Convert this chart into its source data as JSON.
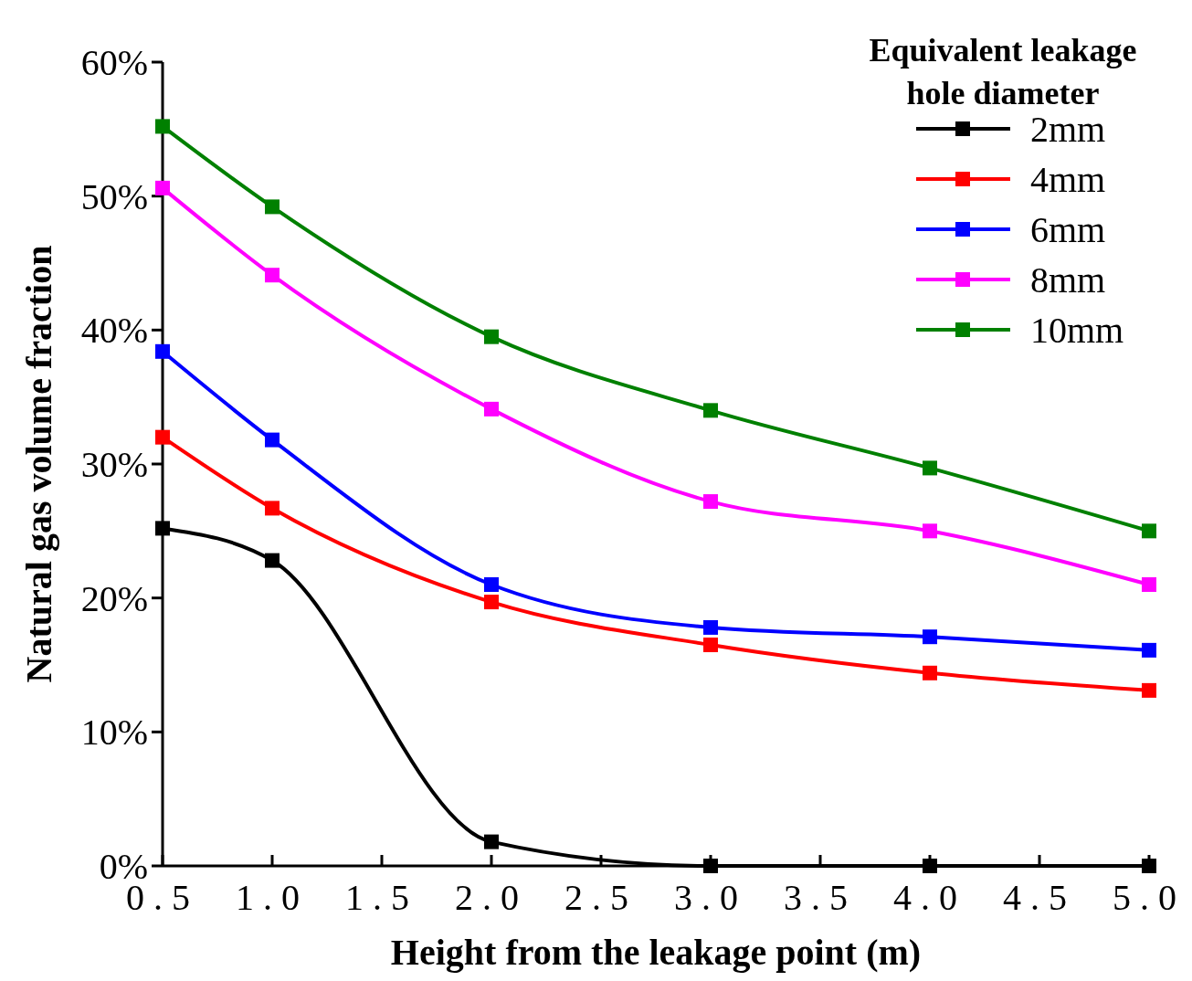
{
  "chart_data": {
    "type": "line",
    "xlabel": "Height from the leakage point (m)",
    "ylabel": "Natural gas volume fraction",
    "legend_title": "Equivalent leakage hole diameter",
    "legend": "top right",
    "marker": "square",
    "line_style": "solid",
    "grid": false,
    "x": [
      0.5,
      1.0,
      2.0,
      3.0,
      4.0,
      5.0
    ],
    "xlim": [
      0.5,
      5.0
    ],
    "xticks": [
      0.5,
      {
        "value": 1.0,
        "label": "1.0"
      },
      1.5,
      {
        "value": 2.0,
        "label": "2.0"
      },
      2.5,
      {
        "value": 3.0,
        "label": "3.0"
      },
      3.5,
      {
        "value": 4.0,
        "label": "4.0"
      },
      4.5,
      {
        "value": 5.0,
        "label": "5.0"
      }
    ],
    "ylim": [
      0,
      60
    ],
    "yticks": [
      {
        "value": 0,
        "label": "0%"
      },
      {
        "value": 10,
        "label": "10%"
      },
      {
        "value": 20,
        "label": "20%"
      },
      {
        "value": 30,
        "label": "30%"
      },
      {
        "value": 40,
        "label": "40%"
      },
      {
        "value": 50,
        "label": "50%"
      },
      {
        "value": 60,
        "label": "60%"
      }
    ],
    "series": [
      {
        "name": "2mm",
        "color": "#000000",
        "values": [
          25.2,
          22.8,
          1.8,
          0,
          0,
          0
        ]
      },
      {
        "name": "4mm",
        "color": "#ff0000",
        "values": [
          32.0,
          26.7,
          19.7,
          16.5,
          14.4,
          13.1
        ]
      },
      {
        "name": "6mm",
        "color": "#0000ff",
        "values": [
          38.4,
          31.8,
          21.0,
          17.8,
          17.1,
          16.1
        ]
      },
      {
        "name": "8mm",
        "color": "#ff00ff",
        "values": [
          50.6,
          44.1,
          34.1,
          27.2,
          25.0,
          21.0
        ]
      },
      {
        "name": "10mm",
        "color": "#008000",
        "values": [
          55.2,
          49.2,
          39.5,
          34.0,
          29.7,
          25.0
        ]
      }
    ]
  }
}
